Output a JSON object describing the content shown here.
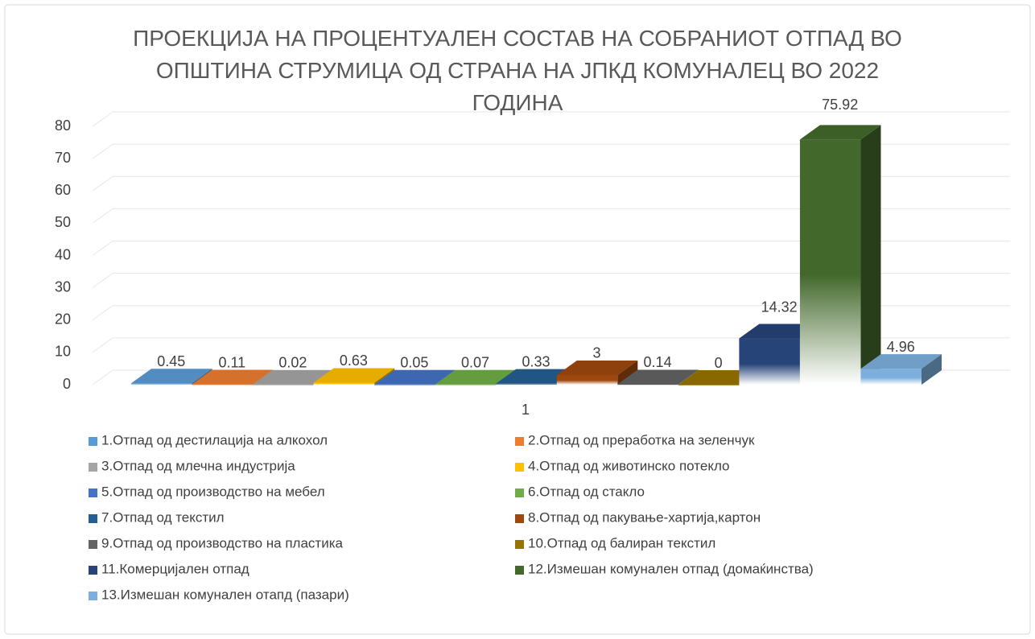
{
  "chart_data": {
    "type": "bar3d",
    "title": "ПРОЕКЦИЈА НА ПРОЦЕНТУАЛЕН СОСТАВ НА СОБРАНИОТ ОТПАД ВО ОПШТИНА СТРУМИЦА ОД СТРАНА НА ЈПКД КОМУНАЛЕЦ ВО 2022 ГОДИНА",
    "categories": [
      "1"
    ],
    "ylim": [
      0,
      80
    ],
    "yticks": [
      0,
      10,
      20,
      30,
      40,
      50,
      60,
      70,
      80
    ],
    "grid": true,
    "legend": "bottom",
    "series": [
      {
        "name": "1.Отпад од дестилација на алкохол",
        "color": "#5b9bd5",
        "values": [
          0.45
        ]
      },
      {
        "name": "2.Отпад од преработка на зеленчук",
        "color": "#ed7d31",
        "values": [
          0.11
        ]
      },
      {
        "name": "3.Отпад од млечна индустрија",
        "color": "#a5a5a5",
        "values": [
          0.02
        ]
      },
      {
        "name": "4.Отпад од животинско потекло",
        "color": "#ffc000",
        "values": [
          0.63
        ]
      },
      {
        "name": "5.Отпад од производство на мебел",
        "color": "#4472c4",
        "values": [
          0.05
        ]
      },
      {
        "name": "6.Отпад од стакло",
        "color": "#70ad47",
        "values": [
          0.07
        ]
      },
      {
        "name": "7.Отпад од текстил",
        "color": "#255e91",
        "values": [
          0.33
        ]
      },
      {
        "name": "8.Отпад од пакување-хартија,картон",
        "color": "#9e480e",
        "values": [
          3
        ]
      },
      {
        "name": "9.Отпад од производство на пластика",
        "color": "#636363",
        "values": [
          0.14
        ]
      },
      {
        "name": "10.Отпад од балиран текстил",
        "color": "#997300",
        "values": [
          0
        ]
      },
      {
        "name": "11.Комерцијален отпад",
        "color": "#264478",
        "values": [
          14.32
        ]
      },
      {
        "name": "12.Измешан комунален отпад (домаќинства)",
        "color": "#43682b",
        "values": [
          75.92
        ]
      },
      {
        "name": "13.Измешан комунален отапд (пазари)",
        "color": "#7cafdd",
        "values": [
          4.96
        ]
      }
    ]
  }
}
